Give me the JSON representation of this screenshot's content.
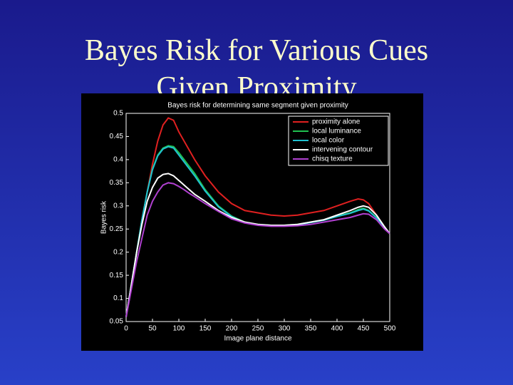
{
  "slide": {
    "title_lines": [
      "Bayes Risk for Various Cues",
      "Given Proximity"
    ]
  },
  "chart_data": {
    "type": "line",
    "title": "Bayes risk for determining same segment given proximity",
    "x_label": "Image plane distance",
    "y_label": "Bayes risk",
    "x": [
      0,
      10,
      20,
      30,
      40,
      50,
      60,
      70,
      80,
      90,
      100,
      110,
      120,
      130,
      150,
      175,
      200,
      225,
      250,
      275,
      300,
      325,
      350,
      375,
      400,
      425,
      440,
      450,
      460,
      475,
      490,
      500
    ],
    "series": [
      {
        "name": "proximity alone",
        "color": "#e02020",
        "values": [
          0.06,
          0.13,
          0.2,
          0.27,
          0.33,
          0.39,
          0.44,
          0.475,
          0.49,
          0.485,
          0.46,
          0.44,
          0.42,
          0.4,
          0.365,
          0.33,
          0.305,
          0.29,
          0.285,
          0.28,
          0.278,
          0.28,
          0.285,
          0.29,
          0.3,
          0.31,
          0.315,
          0.313,
          0.305,
          0.28,
          0.255,
          0.24
        ]
      },
      {
        "name": "local luminance",
        "color": "#20c050",
        "values": [
          0.06,
          0.13,
          0.2,
          0.27,
          0.33,
          0.38,
          0.41,
          0.425,
          0.43,
          0.428,
          0.415,
          0.4,
          0.385,
          0.37,
          0.335,
          0.3,
          0.278,
          0.265,
          0.26,
          0.258,
          0.258,
          0.26,
          0.265,
          0.27,
          0.278,
          0.285,
          0.292,
          0.295,
          0.29,
          0.275,
          0.255,
          0.24
        ]
      },
      {
        "name": "local color",
        "color": "#20c0d0",
        "values": [
          0.06,
          0.13,
          0.2,
          0.27,
          0.33,
          0.378,
          0.408,
          0.423,
          0.428,
          0.425,
          0.41,
          0.395,
          0.38,
          0.365,
          0.332,
          0.298,
          0.277,
          0.264,
          0.259,
          0.257,
          0.257,
          0.259,
          0.264,
          0.269,
          0.277,
          0.284,
          0.29,
          0.293,
          0.289,
          0.274,
          0.254,
          0.24
        ]
      },
      {
        "name": "intervening contour",
        "color": "#ffffff",
        "values": [
          0.06,
          0.13,
          0.2,
          0.26,
          0.31,
          0.34,
          0.36,
          0.368,
          0.37,
          0.365,
          0.355,
          0.345,
          0.335,
          0.325,
          0.31,
          0.29,
          0.275,
          0.265,
          0.26,
          0.258,
          0.258,
          0.26,
          0.265,
          0.27,
          0.28,
          0.29,
          0.297,
          0.3,
          0.297,
          0.28,
          0.255,
          0.24
        ]
      },
      {
        "name": "chisq texture",
        "color": "#b040d0",
        "values": [
          0.06,
          0.12,
          0.18,
          0.23,
          0.28,
          0.31,
          0.33,
          0.345,
          0.35,
          0.348,
          0.342,
          0.335,
          0.327,
          0.32,
          0.305,
          0.288,
          0.272,
          0.263,
          0.258,
          0.256,
          0.256,
          0.257,
          0.26,
          0.265,
          0.27,
          0.275,
          0.28,
          0.283,
          0.282,
          0.27,
          0.25,
          0.24
        ]
      }
    ],
    "xlim": [
      0,
      500
    ],
    "xticks": [
      0,
      50,
      100,
      150,
      200,
      250,
      300,
      350,
      400,
      450,
      500
    ],
    "ylim": [
      0.05,
      0.5
    ],
    "yticks": [
      0.05,
      0.1,
      0.15,
      0.2,
      0.25,
      0.3,
      0.35,
      0.4,
      0.45,
      0.5
    ],
    "legend": "upper right"
  }
}
